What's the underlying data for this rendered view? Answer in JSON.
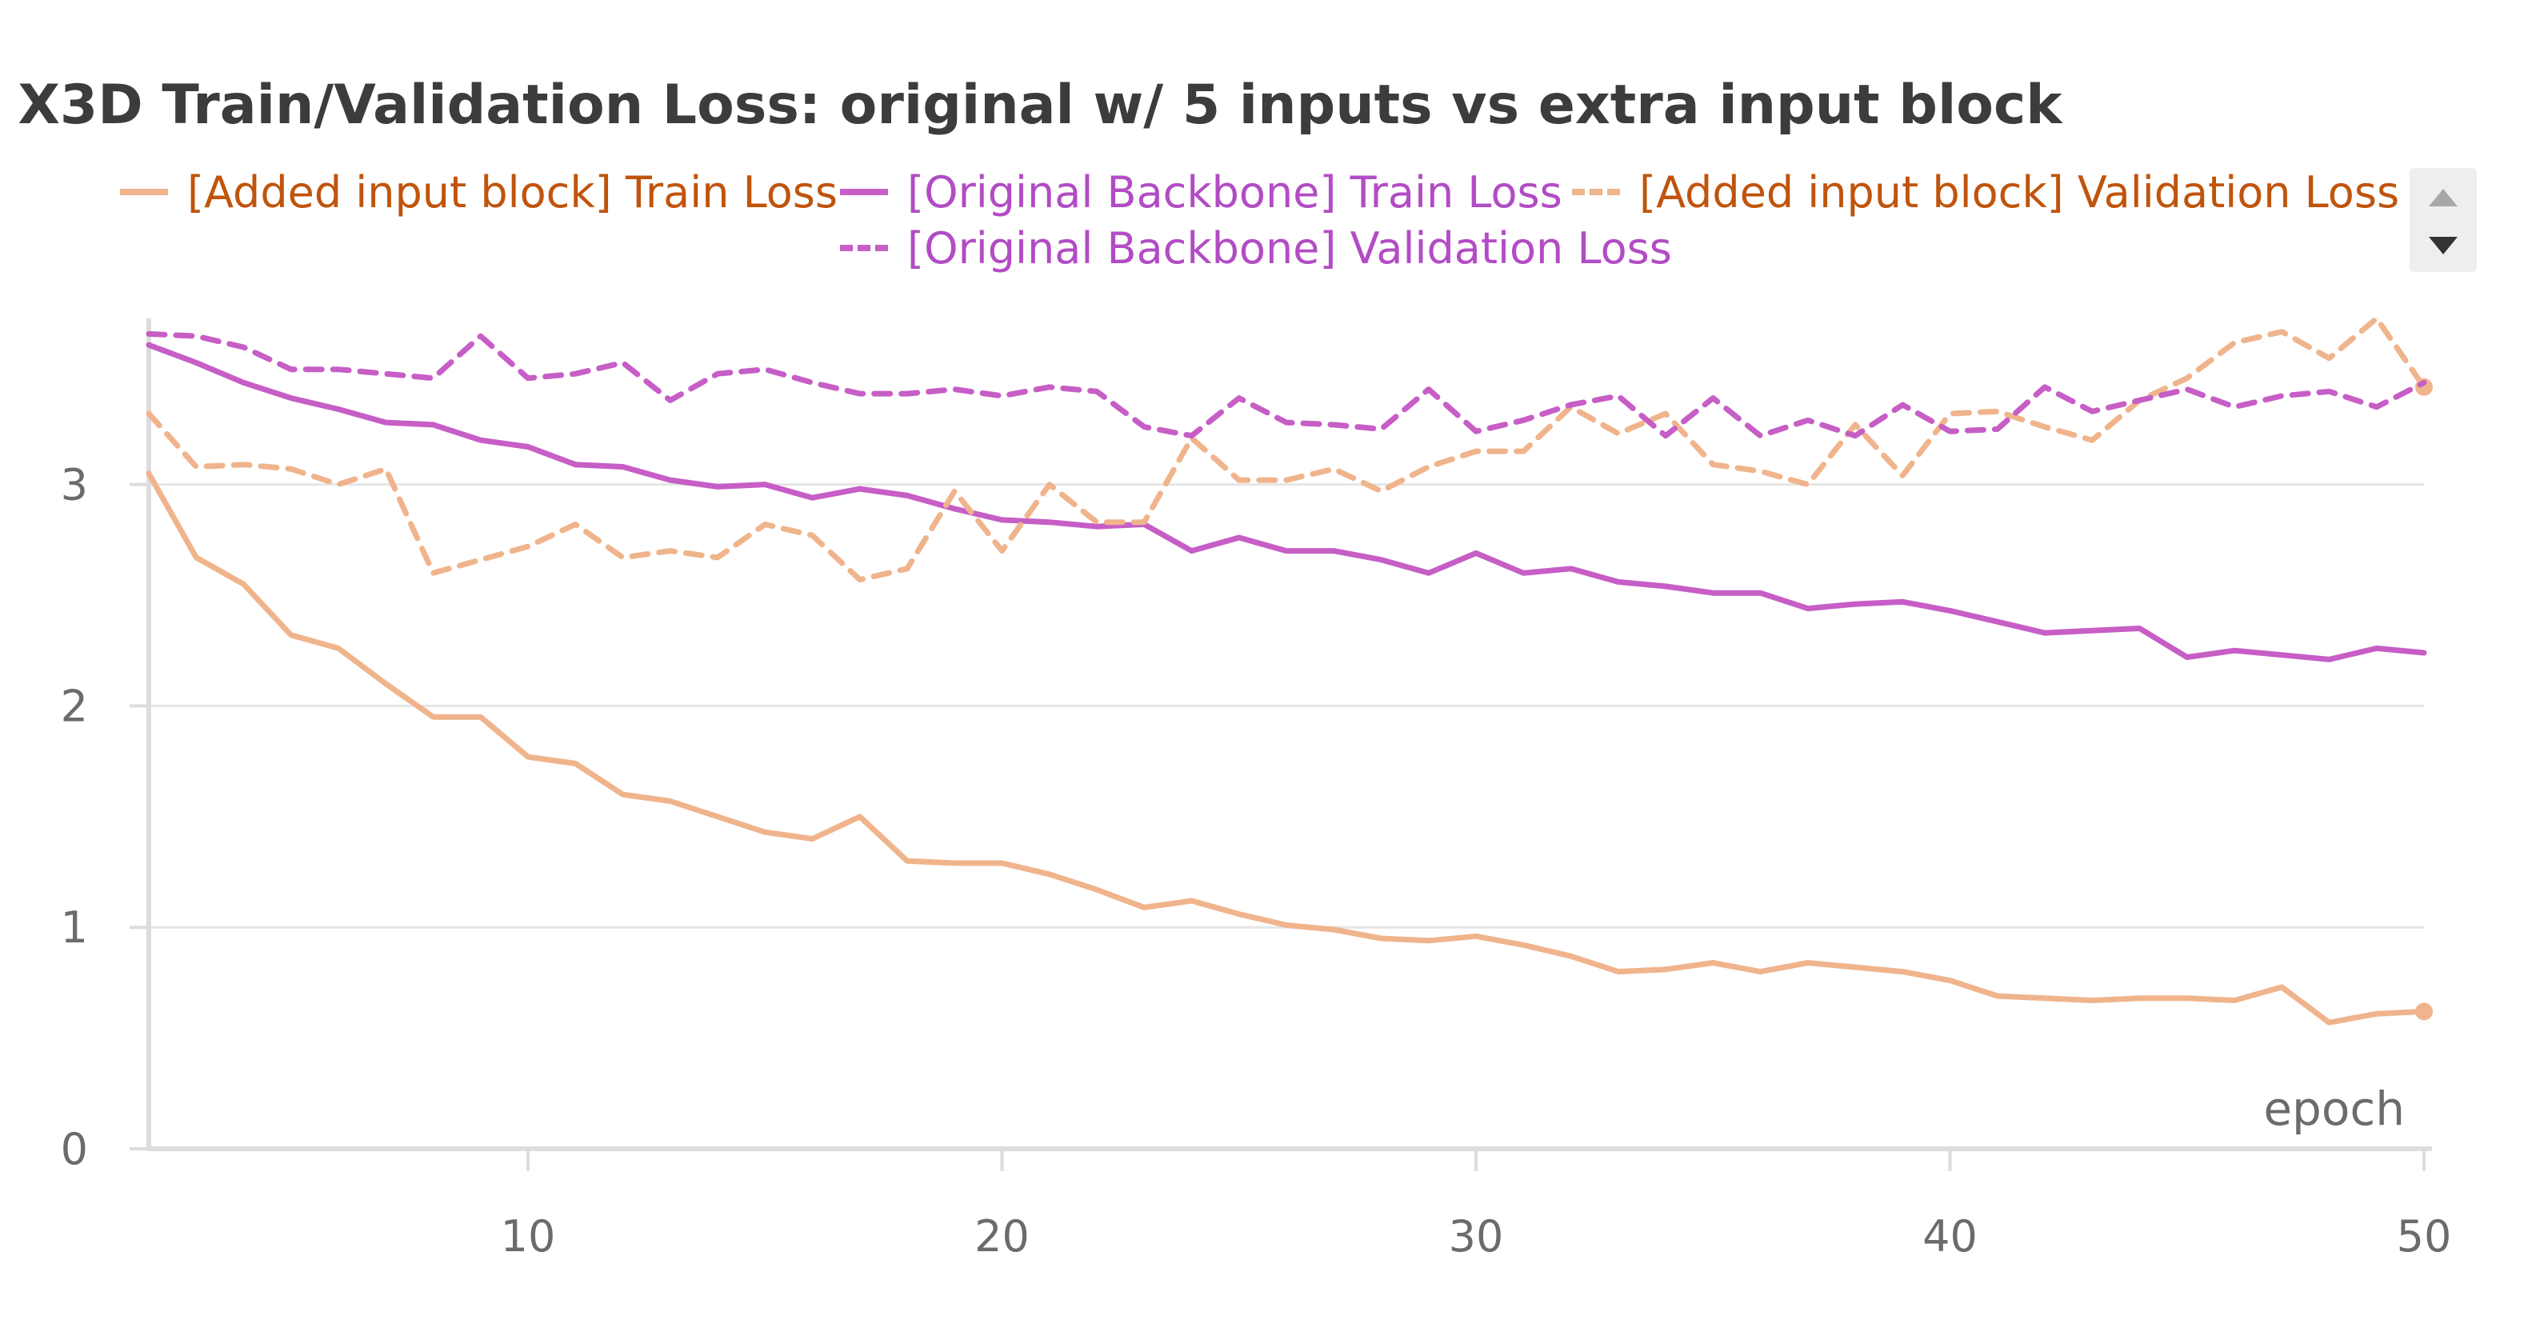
{
  "chart_data": {
    "type": "line",
    "title": "X3D Train/Validation Loss: original w/ 5 inputs vs extra input block",
    "xlabel": "epoch",
    "ylabel": "",
    "xlim": [
      2,
      50
    ],
    "ylim": [
      0,
      3.75
    ],
    "x_ticks": [
      10,
      20,
      30,
      40,
      50
    ],
    "y_ticks": [
      0,
      1,
      2,
      3
    ],
    "grid": true,
    "legend_position": "top",
    "x": [
      2,
      3,
      4,
      5,
      6,
      7,
      8,
      9,
      10,
      11,
      12,
      13,
      14,
      15,
      16,
      17,
      18,
      19,
      20,
      21,
      22,
      23,
      24,
      25,
      26,
      27,
      28,
      29,
      30,
      31,
      32,
      33,
      34,
      35,
      36,
      37,
      38,
      39,
      40,
      41,
      42,
      43,
      44,
      45,
      46,
      47,
      48,
      49,
      50
    ],
    "series": [
      {
        "name": "[Added input block] Train Loss",
        "color": "#f0b48c",
        "label_color": "#c0540c",
        "dash": false,
        "end_marker": true,
        "values": [
          3.05,
          2.67,
          2.55,
          2.32,
          2.26,
          2.1,
          1.95,
          1.95,
          1.77,
          1.74,
          1.6,
          1.57,
          1.5,
          1.43,
          1.4,
          1.5,
          1.3,
          1.29,
          1.29,
          1.24,
          1.17,
          1.09,
          1.12,
          1.06,
          1.01,
          0.99,
          0.95,
          0.94,
          0.96,
          0.92,
          0.87,
          0.8,
          0.81,
          0.84,
          0.8,
          0.84,
          0.82,
          0.8,
          0.76,
          0.69,
          0.68,
          0.67,
          0.68,
          0.68,
          0.67,
          0.73,
          0.57,
          0.61,
          0.62
        ]
      },
      {
        "name": "[Original Backbone] Train Loss",
        "color": "#c65ec6",
        "label_color": "#b24cc4",
        "dash": false,
        "end_marker": false,
        "values": [
          3.63,
          3.55,
          3.46,
          3.39,
          3.34,
          3.28,
          3.27,
          3.2,
          3.17,
          3.09,
          3.08,
          3.02,
          2.99,
          3.0,
          2.94,
          2.98,
          2.95,
          2.89,
          2.84,
          2.83,
          2.81,
          2.82,
          2.7,
          2.76,
          2.7,
          2.7,
          2.66,
          2.6,
          2.69,
          2.6,
          2.62,
          2.56,
          2.54,
          2.51,
          2.51,
          2.44,
          2.46,
          2.47,
          2.43,
          2.38,
          2.33,
          2.34,
          2.35,
          2.22,
          2.25,
          2.23,
          2.21,
          2.26,
          2.24
        ]
      },
      {
        "name": "[Added input block] Validation Loss",
        "color": "#f0b48c",
        "label_color": "#c0540c",
        "dash": true,
        "end_marker": true,
        "values": [
          3.32,
          3.08,
          3.09,
          3.07,
          3.0,
          3.07,
          2.6,
          2.66,
          2.72,
          2.82,
          2.67,
          2.7,
          2.67,
          2.82,
          2.77,
          2.57,
          2.62,
          2.97,
          2.7,
          3.0,
          2.83,
          2.83,
          3.21,
          3.02,
          3.02,
          3.07,
          2.97,
          3.08,
          3.15,
          3.15,
          3.35,
          3.23,
          3.32,
          3.09,
          3.06,
          3.0,
          3.27,
          3.04,
          3.32,
          3.33,
          3.26,
          3.2,
          3.38,
          3.48,
          3.64,
          3.69,
          3.57,
          3.75,
          3.44
        ]
      },
      {
        "name": "[Original Backbone] Validation Loss",
        "color": "#c65ec6",
        "label_color": "#b24cc4",
        "dash": true,
        "end_marker": false,
        "values": [
          3.68,
          3.67,
          3.62,
          3.52,
          3.52,
          3.5,
          3.48,
          3.67,
          3.48,
          3.5,
          3.55,
          3.38,
          3.5,
          3.52,
          3.46,
          3.41,
          3.41,
          3.43,
          3.4,
          3.44,
          3.42,
          3.26,
          3.22,
          3.39,
          3.28,
          3.27,
          3.25,
          3.43,
          3.24,
          3.29,
          3.36,
          3.4,
          3.22,
          3.39,
          3.22,
          3.29,
          3.22,
          3.36,
          3.24,
          3.25,
          3.44,
          3.33,
          3.38,
          3.43,
          3.35,
          3.4,
          3.42,
          3.35,
          3.46
        ]
      }
    ]
  }
}
